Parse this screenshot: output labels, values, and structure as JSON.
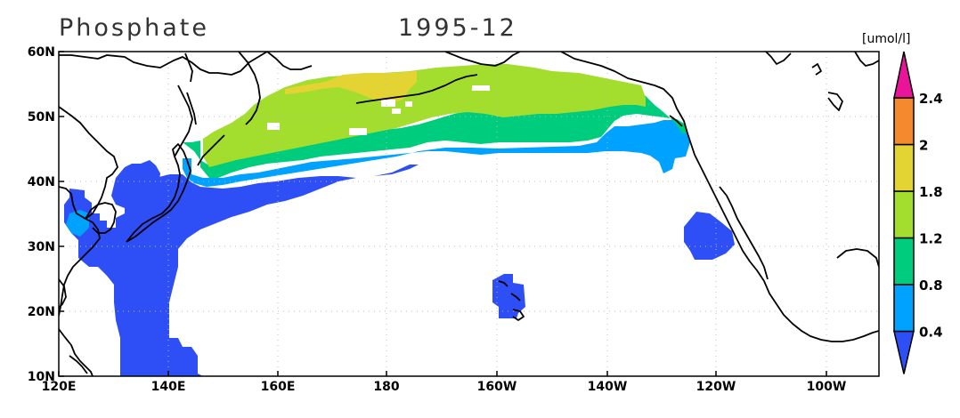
{
  "map": {
    "variable": "Phosphate",
    "date": "1995-12",
    "units": "[umol/l]",
    "projection": "lat-lon",
    "lon_range": [
      "120E",
      "90W"
    ],
    "lat_range": [
      "10N",
      "60N"
    ],
    "grid": "dotted",
    "lon_ticks": [
      "120E",
      "140E",
      "160E",
      "180",
      "160W",
      "140W",
      "120W",
      "100W"
    ],
    "lat_ticks": [
      "10N",
      "20N",
      "30N",
      "40N",
      "50N",
      "60N"
    ]
  },
  "colorbar": {
    "labels": [
      "0.4",
      "0.8",
      "1.2",
      "1.8",
      "2",
      "2.4"
    ],
    "colors": [
      "#2e4ff5",
      "#00a2ff",
      "#00cc7e",
      "#a3dd2e",
      "#e3d333",
      "#f5892e",
      "#e9149a"
    ],
    "placement": "right"
  },
  "colors": {
    "band_0_4": "#2e4ff5",
    "band_0_8": "#00a2ff",
    "band_1_2": "#00cc7e",
    "band_1_8": "#a3dd2e",
    "band_2_0": "#e3d333",
    "band_2_4": "#f5892e",
    "band_max": "#e9149a"
  }
}
